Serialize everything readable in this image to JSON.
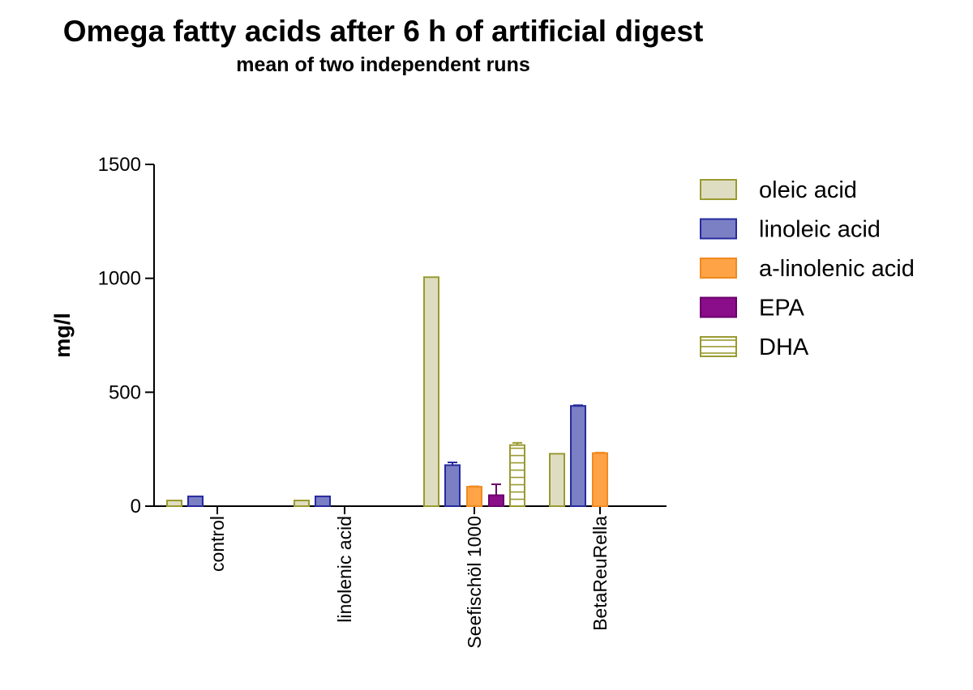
{
  "chart_data": {
    "type": "bar",
    "title": "Omega fatty acids after 6 h of artificial digest",
    "subtitle": "mean of two independent runs",
    "ylabel": "mg/l",
    "xlabel": "",
    "ylim": [
      0,
      1500
    ],
    "yticks": [
      0,
      500,
      1000,
      1500
    ],
    "grid": false,
    "legend_position": "right",
    "categories": [
      "control",
      "linolenic acid",
      "Seefischöl 1000",
      "BetaReuRella"
    ],
    "series": [
      {
        "name": "oleic acid",
        "fill": "#deddc1",
        "stroke": "#9a9a30",
        "pattern": "solid",
        "values": [
          25,
          25,
          1005,
          230
        ],
        "errors": [
          0,
          0,
          0,
          0
        ]
      },
      {
        "name": "linoleic acid",
        "fill": "#7b7fc4",
        "stroke": "#262a9e",
        "pattern": "solid",
        "values": [
          43,
          43,
          180,
          440
        ],
        "errors": [
          0,
          0,
          12,
          3
        ]
      },
      {
        "name": "a-linolenic acid",
        "fill": "#ffa347",
        "stroke": "#f08a1f",
        "pattern": "solid",
        "values": [
          null,
          null,
          85,
          233
        ],
        "errors": [
          0,
          0,
          2,
          2
        ]
      },
      {
        "name": "EPA",
        "fill": "#8a0d8a",
        "stroke": "#6a006a",
        "pattern": "solid",
        "values": [
          null,
          null,
          48,
          null
        ],
        "errors": [
          0,
          0,
          48,
          0
        ]
      },
      {
        "name": "DHA",
        "fill": "#ffffff",
        "stroke": "#9a9a30",
        "pattern": "horizontal-lines",
        "values": [
          null,
          null,
          268,
          null
        ],
        "errors": [
          0,
          0,
          10,
          0
        ]
      }
    ]
  }
}
